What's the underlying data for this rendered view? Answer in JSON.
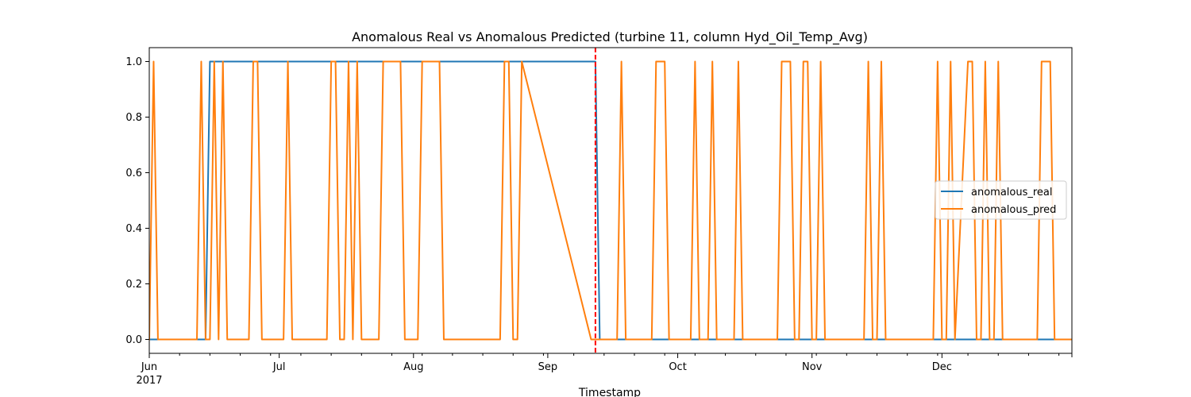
{
  "chart_data": {
    "type": "line",
    "title": "Anomalous Real vs Anomalous Predicted (turbine 11, column Hyd_Oil_Temp_Avg)",
    "xlabel": "Timestamp",
    "ylabel": "",
    "x_axis": {
      "type": "date",
      "range": [
        "2017-06-01",
        "2017-12-31"
      ],
      "major_ticks": [
        {
          "date": "2017-06-01",
          "label": "Jun",
          "sublabel": "2017"
        },
        {
          "date": "2017-07-01",
          "label": "Jul"
        },
        {
          "date": "2017-08-01",
          "label": "Aug"
        },
        {
          "date": "2017-09-01",
          "label": "Sep"
        },
        {
          "date": "2017-10-01",
          "label": "Oct"
        },
        {
          "date": "2017-11-01",
          "label": "Nov"
        },
        {
          "date": "2017-12-01",
          "label": "Dec"
        }
      ],
      "minor_tick_interval_days": 7
    },
    "y_axis": {
      "range": [
        -0.05,
        1.05
      ],
      "ticks": [
        0.0,
        0.2,
        0.4,
        0.6,
        0.8,
        1.0
      ],
      "tick_labels": [
        "0.0",
        "0.2",
        "0.4",
        "0.6",
        "0.8",
        "1.0"
      ]
    },
    "grid": false,
    "legend": {
      "position": "center-right"
    },
    "reference_line": {
      "orientation": "vertical",
      "x": "2017-09-12",
      "style": "dashed",
      "color": "#ff0000"
    },
    "series": [
      {
        "name": "anomalous_real",
        "color": "#1f77b4",
        "x": [
          "2017-06-01",
          "2017-06-14",
          "2017-06-15",
          "2017-09-12",
          "2017-09-13",
          "2017-12-31"
        ],
        "y": [
          0,
          0,
          1,
          1,
          0,
          0
        ]
      },
      {
        "name": "anomalous_pred",
        "color": "#ff7f0e",
        "x": [
          "2017-06-01",
          "2017-06-02",
          "2017-06-03",
          "2017-06-04",
          "2017-06-12",
          "2017-06-13",
          "2017-06-14",
          "2017-06-15",
          "2017-06-16",
          "2017-06-17",
          "2017-06-18",
          "2017-06-19",
          "2017-06-20",
          "2017-06-21",
          "2017-06-24",
          "2017-06-25",
          "2017-06-26",
          "2017-06-27",
          "2017-07-02",
          "2017-07-03",
          "2017-07-04",
          "2017-07-12",
          "2017-07-13",
          "2017-07-14",
          "2017-07-15",
          "2017-07-16",
          "2017-07-17",
          "2017-07-18",
          "2017-07-19",
          "2017-07-20",
          "2017-07-24",
          "2017-07-25",
          "2017-07-29",
          "2017-07-30",
          "2017-08-02",
          "2017-08-03",
          "2017-08-07",
          "2017-08-08",
          "2017-08-21",
          "2017-08-22",
          "2017-08-23",
          "2017-08-24",
          "2017-08-25",
          "2017-08-26",
          "2017-09-11",
          "2017-09-12",
          "2017-09-13",
          "2017-09-17",
          "2017-09-18",
          "2017-09-19",
          "2017-09-25",
          "2017-09-26",
          "2017-09-28",
          "2017-09-29",
          "2017-10-04",
          "2017-10-05",
          "2017-10-06",
          "2017-10-08",
          "2017-10-09",
          "2017-10-10",
          "2017-10-14",
          "2017-10-15",
          "2017-10-16",
          "2017-10-24",
          "2017-10-25",
          "2017-10-27",
          "2017-10-28",
          "2017-10-29",
          "2017-10-30",
          "2017-10-31",
          "2017-11-01",
          "2017-11-02",
          "2017-11-03",
          "2017-11-04",
          "2017-11-05",
          "2017-11-13",
          "2017-11-14",
          "2017-11-15",
          "2017-11-16",
          "2017-11-17",
          "2017-11-18",
          "2017-11-29",
          "2017-11-30",
          "2017-12-01",
          "2017-12-02",
          "2017-12-03",
          "2017-12-04",
          "2017-12-07",
          "2017-12-08",
          "2017-12-09",
          "2017-12-10",
          "2017-12-11",
          "2017-12-12",
          "2017-12-13",
          "2017-12-14",
          "2017-12-15",
          "2017-12-23",
          "2017-12-24",
          "2017-12-26",
          "2017-12-27",
          "2017-12-31"
        ],
        "y": [
          0,
          1,
          0,
          0,
          0,
          1,
          0,
          0,
          1,
          0,
          1,
          0,
          0,
          0,
          0,
          1,
          1,
          0,
          0,
          1,
          0,
          0,
          1,
          1,
          0,
          0,
          1,
          0,
          1,
          0,
          0,
          1,
          1,
          0,
          0,
          1,
          1,
          0,
          0,
          1,
          1,
          0,
          0,
          1,
          0,
          0,
          0,
          0,
          1,
          0,
          0,
          1,
          1,
          0,
          0,
          1,
          0,
          0,
          1,
          0,
          0,
          1,
          0,
          0,
          1,
          1,
          0,
          0,
          1,
          1,
          0,
          0,
          1,
          0,
          0,
          0,
          1,
          0,
          0,
          1,
          0,
          0,
          1,
          0,
          0,
          1,
          0,
          1,
          1,
          0,
          0,
          1,
          0,
          0,
          1,
          0,
          0,
          1,
          1,
          0,
          0
        ]
      }
    ]
  }
}
